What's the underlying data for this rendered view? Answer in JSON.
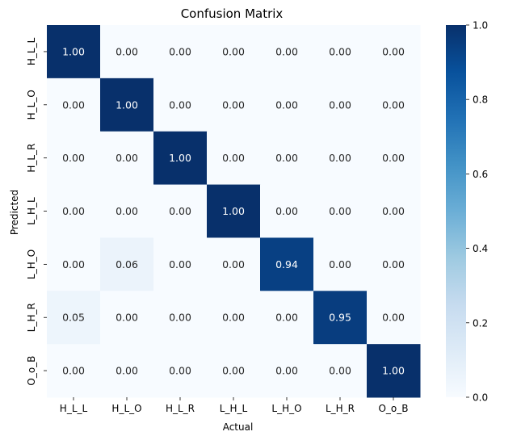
{
  "chart_data": {
    "type": "heatmap",
    "title": "Confusion Matrix",
    "xlabel": "Actual",
    "ylabel": "Predicted",
    "x_categories": [
      "H_L_L",
      "H_L_O",
      "H_L_R",
      "L_H_L",
      "L_H_O",
      "L_H_R",
      "O_o_B"
    ],
    "y_categories": [
      "H_L_L",
      "H_L_O",
      "H_L_R",
      "L_H_L",
      "L_H_O",
      "L_H_R",
      "O_o_B"
    ],
    "values": [
      [
        1.0,
        0.0,
        0.0,
        0.0,
        0.0,
        0.0,
        0.0
      ],
      [
        0.0,
        1.0,
        0.0,
        0.0,
        0.0,
        0.0,
        0.0
      ],
      [
        0.0,
        0.0,
        1.0,
        0.0,
        0.0,
        0.0,
        0.0
      ],
      [
        0.0,
        0.0,
        0.0,
        1.0,
        0.0,
        0.0,
        0.0
      ],
      [
        0.0,
        0.06,
        0.0,
        0.0,
        0.94,
        0.0,
        0.0
      ],
      [
        0.05,
        0.0,
        0.0,
        0.0,
        0.0,
        0.95,
        0.0
      ],
      [
        0.0,
        0.0,
        0.0,
        0.0,
        0.0,
        0.0,
        1.0
      ]
    ],
    "value_format": "0.00",
    "colormap": "Blues",
    "color_range": [
      0.0,
      1.0
    ],
    "colorbar_ticks": [
      "0.0",
      "0.2",
      "0.4",
      "0.6",
      "0.8",
      "1.0"
    ],
    "grid": false
  }
}
